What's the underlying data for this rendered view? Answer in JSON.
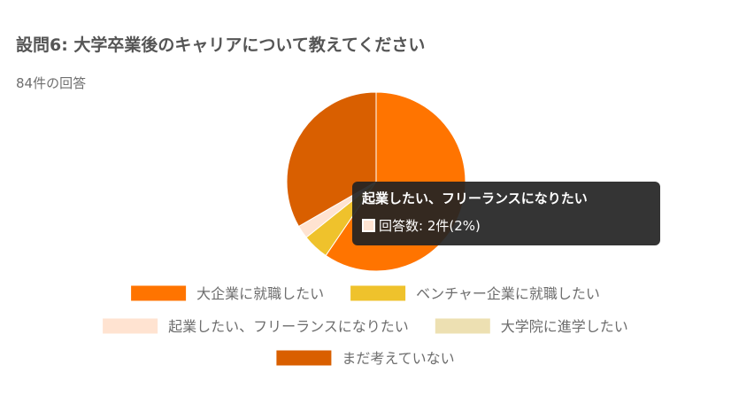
{
  "question": {
    "title": "設問6: 大学卒業後のキャリアについて教えてください",
    "response_count": "84件の回答"
  },
  "chart_data": {
    "type": "pie",
    "categories": [
      "大企業に就職したい",
      "ベンチャー企業に就職したい",
      "起業したい、フリーランスになりたい",
      "大学院に進学したい",
      "まだ考えていない"
    ],
    "values": [
      50,
      4,
      2,
      0,
      28
    ],
    "colors": [
      "#ff7400",
      "#efc22c",
      "#ffe3d1",
      "#ede0b2",
      "#d95f00"
    ],
    "legend_position": "bottom"
  },
  "tooltip": {
    "title": "起業したい、フリーランスになりたい",
    "body": "回答数: 2件(2%)",
    "swatch_color": "#ffe3d1"
  }
}
